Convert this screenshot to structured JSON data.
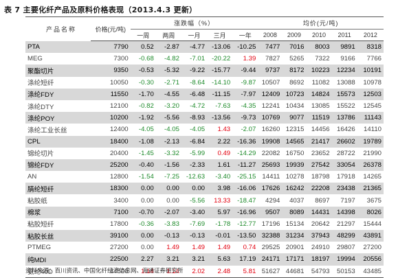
{
  "title": "表 7 主要化纤产品及原料价格表现（2013.4.3 更新）",
  "headers": {
    "product": "产品名称",
    "price": "价格(元/吨)",
    "change_group": "涨跌幅（%）",
    "avg_group": "均价(元/吨)",
    "periods": [
      "一周",
      "两周",
      "一月",
      "三月",
      "一年"
    ],
    "years": [
      "2008",
      "2009",
      "2010",
      "2011",
      "2012"
    ]
  },
  "rows": [
    {
      "name": "PTA",
      "price": "7790",
      "chg": [
        "0.52",
        "-2.87",
        "-4.77",
        "-13.06",
        "-10.25"
      ],
      "avg": [
        "7477",
        "7016",
        "8003",
        "9891",
        "8318"
      ],
      "hl": true
    },
    {
      "name": "MEG",
      "price": "7300",
      "chg": [
        "-0.68",
        "-4.82",
        "-7.01",
        "-20.22",
        "1.39"
      ],
      "avg": [
        "7827",
        "5265",
        "7322",
        "9166",
        "7766"
      ],
      "hl": false
    },
    {
      "name": "聚酯切片",
      "price": "9350",
      "chg": [
        "-0.53",
        "-5.32",
        "-9.22",
        "-15.77",
        "-9.44"
      ],
      "avg": [
        "9737",
        "8172",
        "10223",
        "12234",
        "10191"
      ],
      "hl": true
    },
    {
      "name": "涤纶短纤",
      "price": "10050",
      "chg": [
        "-0.30",
        "-2.71",
        "-8.64",
        "-14.10",
        "-9.87"
      ],
      "avg": [
        "10507",
        "8692",
        "11082",
        "13088",
        "10978"
      ],
      "hl": false
    },
    {
      "name": "涤纶FDY",
      "price": "11550",
      "chg": [
        "-1.70",
        "-4.55",
        "-6.48",
        "-11.15",
        "-7.97"
      ],
      "avg": [
        "12409",
        "10723",
        "14824",
        "15573",
        "12503"
      ],
      "hl": true
    },
    {
      "name": "涤纶DTY",
      "price": "12100",
      "chg": [
        "-0.82",
        "-3.20",
        "-4.72",
        "-7.63",
        "-4.35"
      ],
      "avg": [
        "12241",
        "10434",
        "13085",
        "15522",
        "12545"
      ],
      "hl": false
    },
    {
      "name": "涤纶POY",
      "price": "10200",
      "chg": [
        "-1.92",
        "-5.56",
        "-8.93",
        "-13.56",
        "-9.73"
      ],
      "avg": [
        "10769",
        "9077",
        "11519",
        "13786",
        "11143"
      ],
      "hl": true
    },
    {
      "name": "涤纶工业长丝",
      "price": "12400",
      "chg": [
        "-4.05",
        "-4.05",
        "-4.05",
        "1.43",
        "-2.07"
      ],
      "avg": [
        "16260",
        "12315",
        "14456",
        "16426",
        "14110"
      ],
      "hl": false
    },
    {
      "name": "CPL",
      "price": "18400",
      "chg": [
        "-1.08",
        "-2.13",
        "-6.84",
        "2.22",
        "-16.36"
      ],
      "avg": [
        "19908",
        "14565",
        "21417",
        "26602",
        "19789"
      ],
      "hl": true
    },
    {
      "name": "锦纶切片",
      "price": "20400",
      "chg": [
        "-1.45",
        "-3.32",
        "-5.99",
        "0.49",
        "-14.29"
      ],
      "avg": [
        "22082",
        "16750",
        "23652",
        "28722",
        "21990"
      ],
      "hl": false
    },
    {
      "name": "锦纶FDY",
      "price": "25200",
      "chg": [
        "-0.40",
        "-1.56",
        "-2.33",
        "1.61",
        "-11.27"
      ],
      "avg": [
        "25693",
        "19939",
        "27542",
        "33054",
        "26378"
      ],
      "hl": true
    },
    {
      "name": "AN",
      "price": "12800",
      "chg": [
        "-1.54",
        "-7.25",
        "-12.63",
        "-3.40",
        "-25.15"
      ],
      "avg": [
        "14411",
        "10278",
        "18798",
        "17918",
        "14265"
      ],
      "hl": false
    },
    {
      "name": "腈纶短纤",
      "price": "18300",
      "chg": [
        "0.00",
        "0.00",
        "0.00",
        "3.98",
        "-16.06"
      ],
      "avg": [
        "17626",
        "16242",
        "22208",
        "23438",
        "21365"
      ],
      "hl": true
    },
    {
      "name": "粘胶纸",
      "price": "3400",
      "chg": [
        "0.00",
        "0.00",
        "-5.56",
        "13.33",
        "-18.47"
      ],
      "avg": [
        "4294",
        "4037",
        "8697",
        "7197",
        "3675"
      ],
      "hl": false
    },
    {
      "name": "棉浆",
      "price": "7100",
      "chg": [
        "-0.70",
        "-2.07",
        "-3.40",
        "5.97",
        "-16.96"
      ],
      "avg": [
        "9507",
        "8089",
        "14431",
        "14398",
        "8026"
      ],
      "hl": true
    },
    {
      "name": "粘胶短纤",
      "price": "17800",
      "chg": [
        "-0.36",
        "-3.83",
        "-7.69",
        "-1.78",
        "-12.77"
      ],
      "avg": [
        "17196",
        "15134",
        "20642",
        "21297",
        "15444"
      ],
      "hl": false
    },
    {
      "name": "粘胶长丝",
      "price": "39100",
      "chg": [
        "0.00",
        "-0.13",
        "-0.13",
        "-0.01",
        "-13.50"
      ],
      "avg": [
        "32388",
        "31234",
        "37943",
        "48299",
        "43891"
      ],
      "hl": true
    },
    {
      "name": "PTMEG",
      "price": "27200",
      "chg": [
        "0.00",
        "1.49",
        "1.49",
        "1.49",
        "0.74"
      ],
      "avg": [
        "29525",
        "20901",
        "24910",
        "29807",
        "27200"
      ],
      "hl": false
    },
    {
      "name": "纯MDI",
      "price": "22500",
      "chg": [
        "2.27",
        "3.21",
        "3.21",
        "5.63",
        "17.19"
      ],
      "avg": [
        "24171",
        "17171",
        "18197",
        "19994",
        "20556"
      ],
      "hl": true
    },
    {
      "name": "氨纶40D",
      "price": "44500",
      "chg": [
        "1.14",
        "1.14",
        "2.02",
        "2.48",
        "5.81"
      ],
      "avg": [
        "51627",
        "44681",
        "54793",
        "50153",
        "43485"
      ],
      "hl": false
    }
  ],
  "source": "资料来源：百川资讯、中国化纤经济信息网、海通证券研究所",
  "colors": {
    "positive": "#e3000f",
    "negative": "#1d8a2a",
    "highlight_row": "#d8d8d8"
  }
}
